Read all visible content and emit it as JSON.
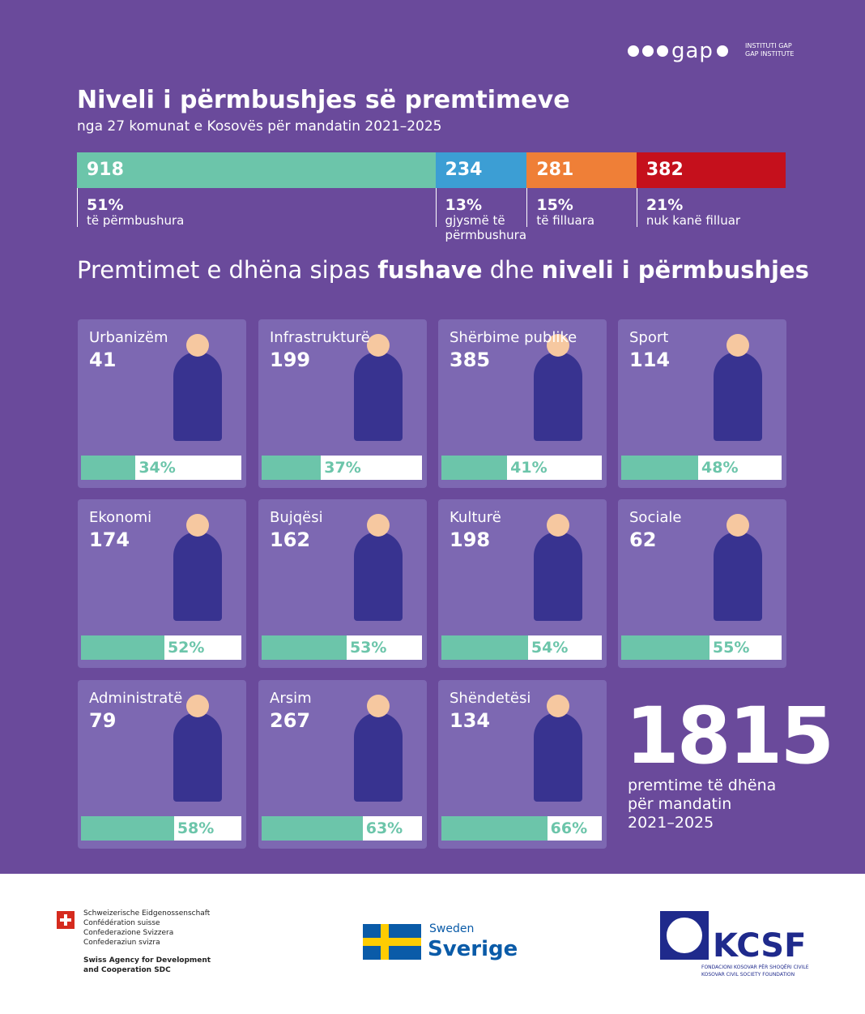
{
  "header": {
    "logo": "gap",
    "logo_sub": [
      "INSTITUTI GAP",
      "GAP INSTITUTE"
    ],
    "title": "Niveli i përmbushjes së premtimeve",
    "subtitle": "nga 27 komunat e Kosovës për mandatin 2021–2025"
  },
  "summary": {
    "segments": [
      {
        "value": 918,
        "percent": "51%",
        "label": "të përmbushura",
        "color": "#6cc5aa"
      },
      {
        "value": 234,
        "percent": "13%",
        "label": "gjysmë të përmbushura",
        "color": "#3c9ed4"
      },
      {
        "value": 281,
        "percent": "15%",
        "label": "të filluara",
        "color": "#ef7f37"
      },
      {
        "value": 382,
        "percent": "21%",
        "label": "nuk kanë filluar",
        "color": "#c5101c"
      }
    ]
  },
  "section_title": [
    {
      "text": "Premtimet e dhëna sipas ",
      "bold": false
    },
    {
      "text": "fushave",
      "bold": true
    },
    {
      "text": " dhe ",
      "bold": false
    },
    {
      "text": "niveli i përmbushjes",
      "bold": true
    }
  ],
  "cards": [
    {
      "name": "Urbanizëm",
      "count": 41,
      "percent": 34,
      "percent_label": "34%"
    },
    {
      "name": "Infrastrukturë",
      "count": 199,
      "percent": 37,
      "percent_label": "37%"
    },
    {
      "name": "Shërbime publike",
      "count": 385,
      "percent": 41,
      "percent_label": "41%"
    },
    {
      "name": "Sport",
      "count": 114,
      "percent": 48,
      "percent_label": "48%"
    },
    {
      "name": "Ekonomi",
      "count": 174,
      "percent": 52,
      "percent_label": "52%"
    },
    {
      "name": "Bujqësi",
      "count": 162,
      "percent": 53,
      "percent_label": "53%"
    },
    {
      "name": "Kulturë",
      "count": 198,
      "percent": 54,
      "percent_label": "54%"
    },
    {
      "name": "Sociale",
      "count": 62,
      "percent": 55,
      "percent_label": "55%"
    },
    {
      "name": "Administratë",
      "count": 79,
      "percent": 58,
      "percent_label": "58%"
    },
    {
      "name": "Arsim",
      "count": 267,
      "percent": 63,
      "percent_label": "63%"
    },
    {
      "name": "Shëndetësi",
      "count": 134,
      "percent": 66,
      "percent_label": "66%"
    }
  ],
  "total": {
    "value": 1815,
    "lines": [
      "premtime të dhëna",
      "për mandatin",
      "2021–2025"
    ]
  },
  "footer": {
    "swiss_lines": [
      "Schweizerische Eidgenossenschaft",
      "Confédération suisse",
      "Confederazione Svizzera",
      "Confederaziun svizra"
    ],
    "swiss_agency": [
      "Swiss Agency for Development",
      "and Cooperation SDC"
    ],
    "sweden": [
      "Sweden",
      "Sverige"
    ],
    "kcsf": "KCSF",
    "kcsf_sub": [
      "FONDACIONI KOSOVAR PËR SHOQËRI CIVILE",
      "KOSOVAR CIVIL SOCIETY FOUNDATION"
    ]
  }
}
